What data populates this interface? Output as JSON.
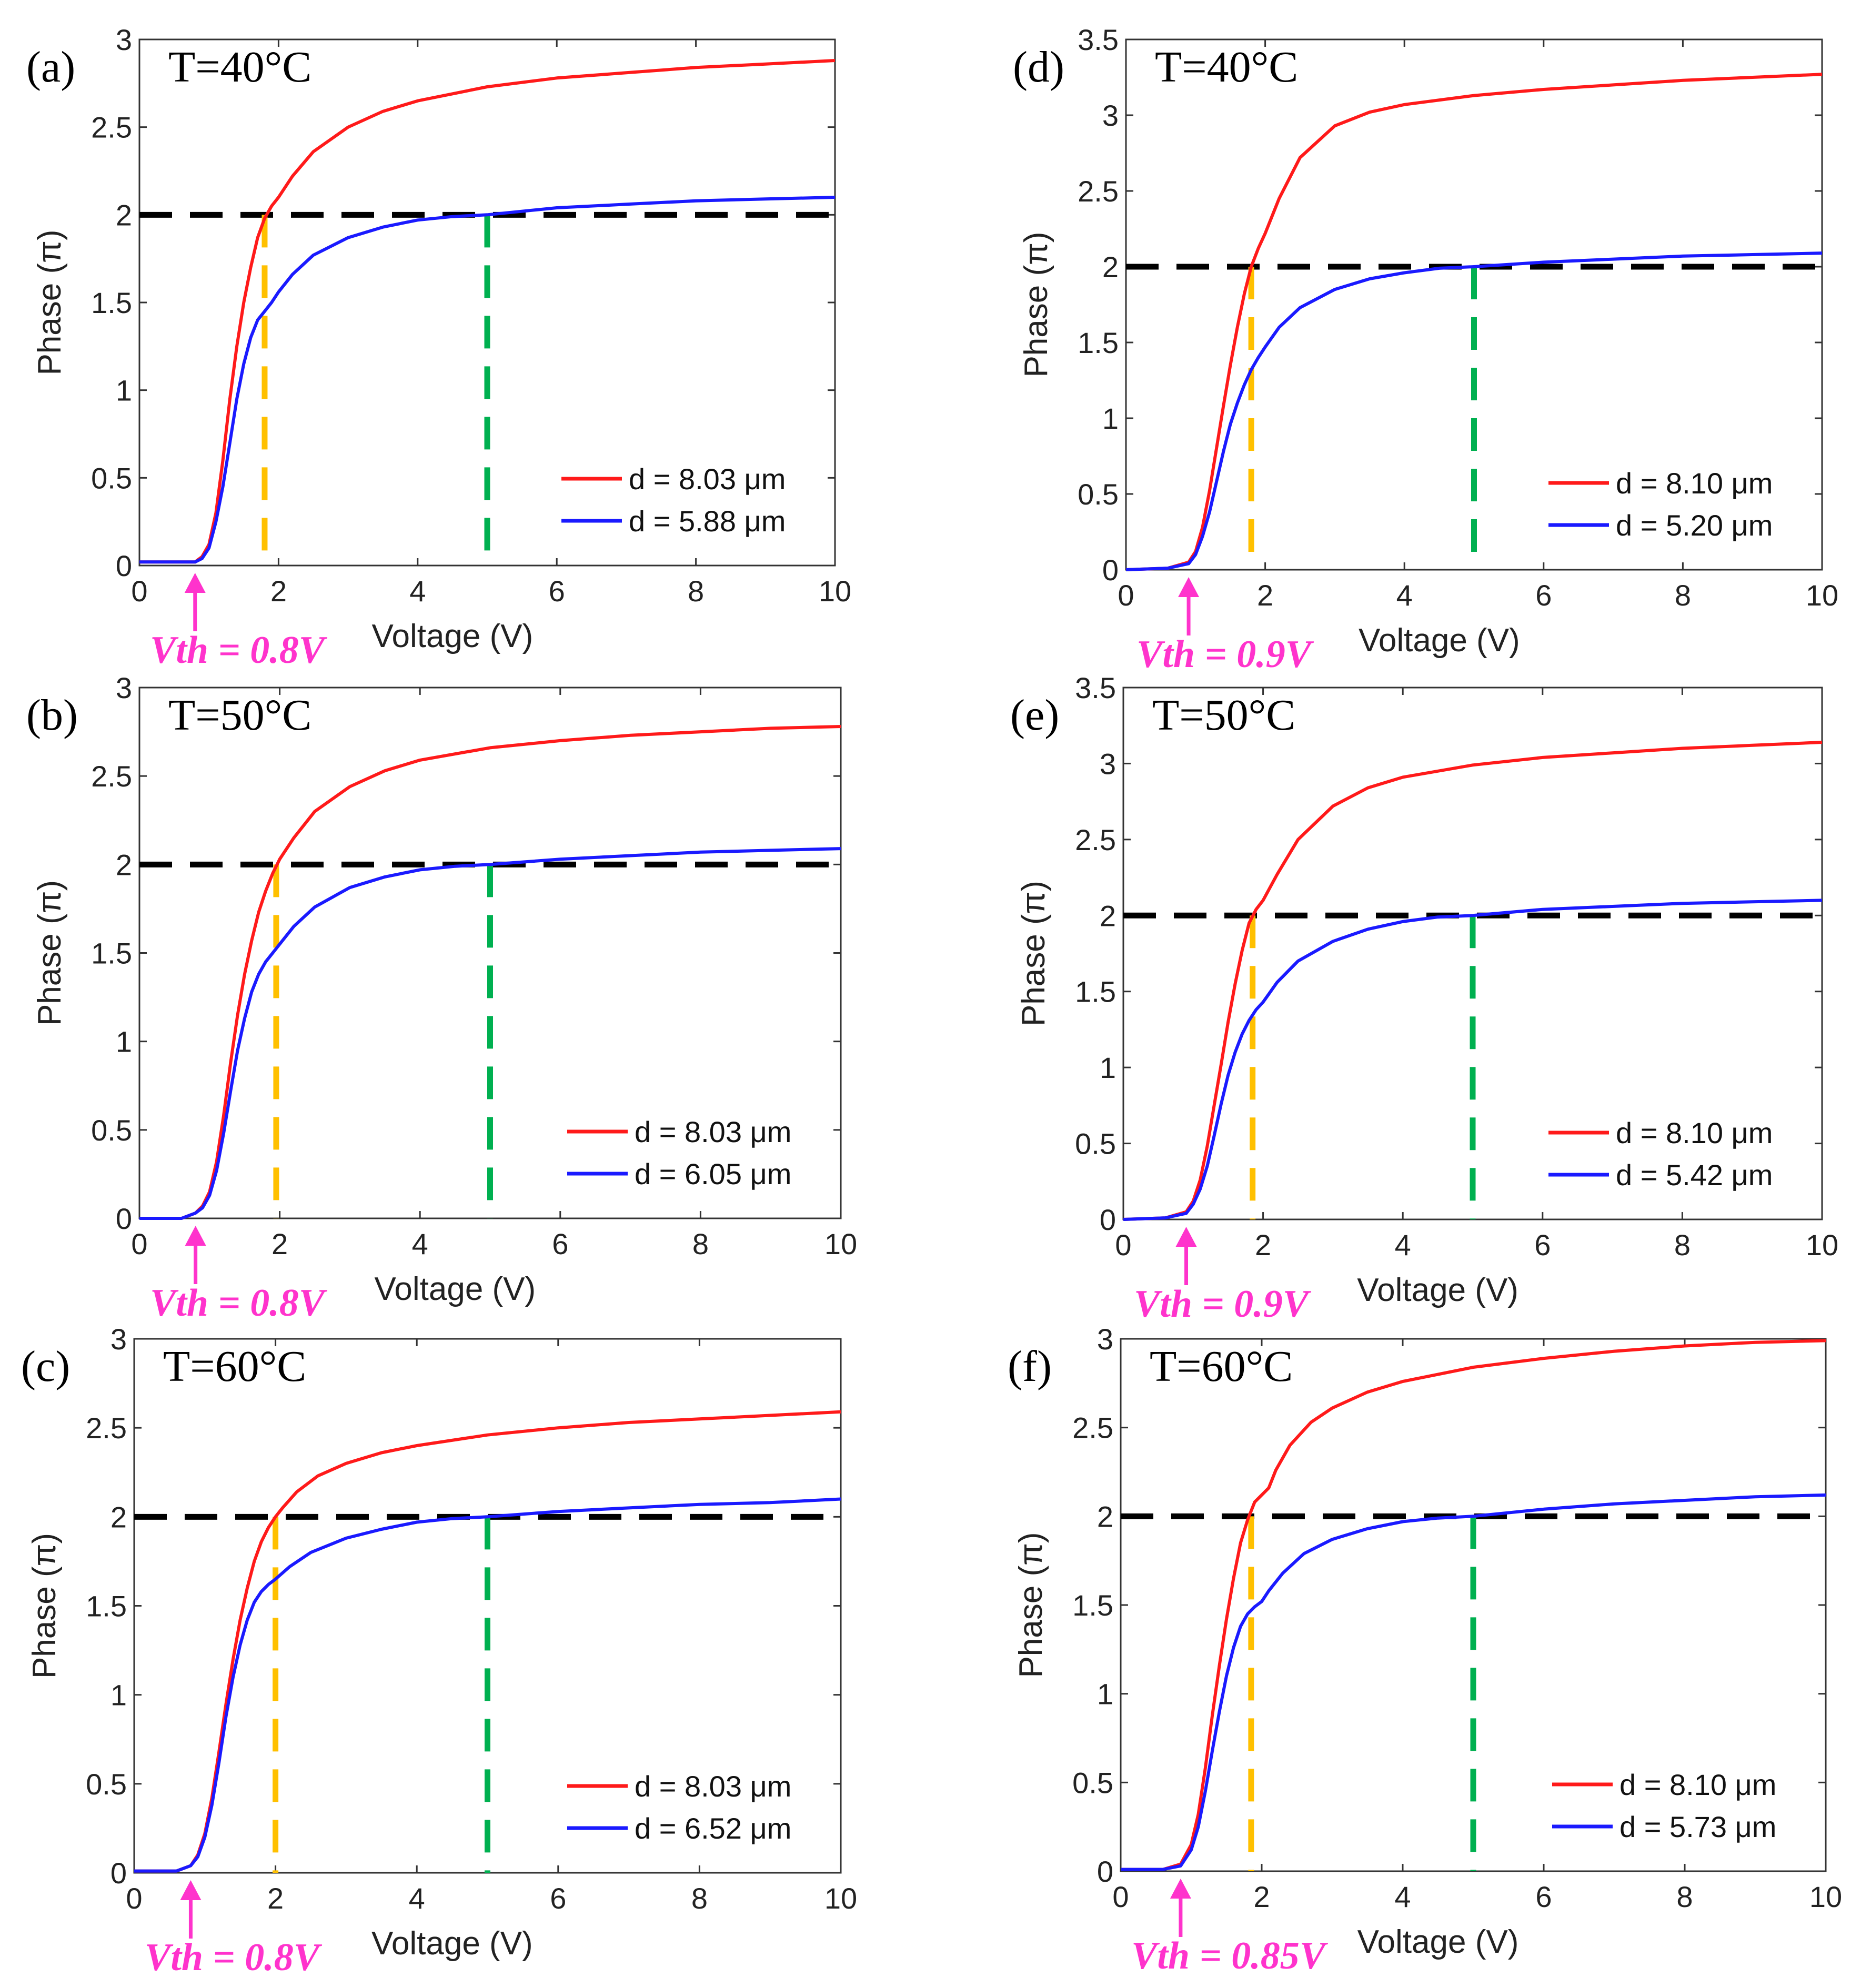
{
  "colors": {
    "red": "#ff1a1a",
    "blue": "#1a1aff",
    "black": "#000000",
    "orange": "#ffc000",
    "green": "#00b050",
    "magenta": "#ff33cc"
  },
  "chart_data": [
    {
      "type": "line",
      "panel": "(a)",
      "temperature": "T=40°C",
      "xlabel": "Voltage (V)",
      "ylabel": "Phase (π)",
      "xlim": [
        0,
        10
      ],
      "ylim": [
        0,
        3
      ],
      "xticks": [
        "0",
        "2",
        "4",
        "6",
        "8",
        "10"
      ],
      "yticks": [
        "0",
        "0.5",
        "1",
        "1.5",
        "2",
        "2.5",
        "3"
      ],
      "vth_label": "Vth = 0.8V",
      "vth": 0.8,
      "reference": {
        "phase": 2,
        "orange_v": 1.8,
        "green_v": 5.0
      },
      "series": [
        {
          "name": "d = 8.03 μm",
          "color": "red",
          "x": [
            0,
            0.8,
            0.9,
            1.0,
            1.1,
            1.2,
            1.3,
            1.4,
            1.5,
            1.6,
            1.7,
            1.8,
            1.9,
            2.0,
            2.2,
            2.5,
            3.0,
            3.5,
            4.0,
            5.0,
            6.0,
            7.0,
            8.0,
            9.0,
            10.0
          ],
          "y": [
            0.02,
            0.02,
            0.05,
            0.12,
            0.3,
            0.6,
            0.95,
            1.25,
            1.5,
            1.7,
            1.87,
            1.98,
            2.05,
            2.1,
            2.22,
            2.36,
            2.5,
            2.59,
            2.65,
            2.73,
            2.78,
            2.81,
            2.84,
            2.86,
            2.88
          ]
        },
        {
          "name": "d = 5.88 μm",
          "color": "blue",
          "x": [
            0,
            0.8,
            0.9,
            1.0,
            1.1,
            1.2,
            1.3,
            1.4,
            1.5,
            1.6,
            1.7,
            1.8,
            1.9,
            2.0,
            2.2,
            2.5,
            3.0,
            3.5,
            4.0,
            4.5,
            5.0,
            6.0,
            7.0,
            8.0,
            9.0,
            10.0
          ],
          "y": [
            0.02,
            0.02,
            0.04,
            0.1,
            0.25,
            0.45,
            0.7,
            0.95,
            1.15,
            1.3,
            1.4,
            1.45,
            1.5,
            1.56,
            1.66,
            1.77,
            1.87,
            1.93,
            1.97,
            1.99,
            2.0,
            2.04,
            2.06,
            2.08,
            2.09,
            2.1
          ]
        }
      ]
    },
    {
      "type": "line",
      "panel": "(b)",
      "temperature": "T=50°C",
      "xlabel": "Voltage (V)",
      "ylabel": "Phase (π)",
      "xlim": [
        0,
        10
      ],
      "ylim": [
        0,
        3
      ],
      "xticks": [
        "0",
        "2",
        "4",
        "6",
        "8",
        "10"
      ],
      "yticks": [
        "0",
        "0.5",
        "1",
        "1.5",
        "2",
        "2.5",
        "3"
      ],
      "vth_label": "Vth = 0.8V",
      "vth": 0.8,
      "reference": {
        "phase": 2,
        "orange_v": 1.95,
        "green_v": 5.0
      },
      "series": [
        {
          "name": "d = 8.03 μm",
          "color": "red",
          "x": [
            0,
            0.6,
            0.8,
            0.9,
            1.0,
            1.1,
            1.2,
            1.3,
            1.4,
            1.5,
            1.6,
            1.7,
            1.8,
            1.9,
            2.0,
            2.2,
            2.5,
            3.0,
            3.5,
            4.0,
            5.0,
            6.0,
            7.0,
            8.0,
            9.0,
            10.0
          ],
          "y": [
            0,
            0,
            0.03,
            0.07,
            0.15,
            0.32,
            0.58,
            0.88,
            1.15,
            1.38,
            1.57,
            1.73,
            1.85,
            1.95,
            2.03,
            2.15,
            2.3,
            2.44,
            2.53,
            2.59,
            2.66,
            2.7,
            2.73,
            2.75,
            2.77,
            2.78
          ]
        },
        {
          "name": "d = 6.05 μm",
          "color": "blue",
          "x": [
            0,
            0.6,
            0.8,
            0.9,
            1.0,
            1.1,
            1.2,
            1.3,
            1.4,
            1.5,
            1.6,
            1.7,
            1.8,
            1.9,
            2.0,
            2.2,
            2.5,
            3.0,
            3.5,
            4.0,
            4.5,
            5.0,
            6.0,
            7.0,
            8.0,
            9.0,
            10.0
          ],
          "y": [
            0,
            0,
            0.03,
            0.06,
            0.13,
            0.27,
            0.48,
            0.72,
            0.95,
            1.13,
            1.28,
            1.38,
            1.45,
            1.5,
            1.55,
            1.65,
            1.76,
            1.87,
            1.93,
            1.97,
            1.99,
            2.0,
            2.03,
            2.05,
            2.07,
            2.08,
            2.09
          ]
        }
      ]
    },
    {
      "type": "line",
      "panel": "(c)",
      "temperature": "T=60°C",
      "xlabel": "Voltage (V)",
      "ylabel": "Phase (π)",
      "xlim": [
        0,
        10
      ],
      "ylim": [
        0,
        3
      ],
      "xticks": [
        "0",
        "2",
        "4",
        "6",
        "8",
        "10"
      ],
      "yticks": [
        "0",
        "0.5",
        "1",
        "1.5",
        "2",
        "2.5",
        "3"
      ],
      "vth_label": "Vth = 0.8V",
      "vth": 0.8,
      "reference": {
        "phase": 2,
        "orange_v": 2.0,
        "green_v": 5.0
      },
      "series": [
        {
          "name": "d = 8.03 μm",
          "color": "red",
          "x": [
            0,
            0.6,
            0.8,
            0.9,
            1.0,
            1.1,
            1.2,
            1.3,
            1.4,
            1.5,
            1.6,
            1.7,
            1.8,
            1.9,
            2.0,
            2.1,
            2.3,
            2.6,
            3.0,
            3.5,
            4.0,
            5.0,
            6.0,
            7.0,
            8.0,
            9.0,
            10.0
          ],
          "y": [
            0.01,
            0.01,
            0.04,
            0.1,
            0.22,
            0.42,
            0.68,
            0.95,
            1.2,
            1.42,
            1.6,
            1.75,
            1.86,
            1.94,
            2.0,
            2.05,
            2.14,
            2.23,
            2.3,
            2.36,
            2.4,
            2.46,
            2.5,
            2.53,
            2.55,
            2.57,
            2.59
          ]
        },
        {
          "name": "d = 6.52 μm",
          "color": "blue",
          "x": [
            0,
            0.6,
            0.8,
            0.9,
            1.0,
            1.1,
            1.2,
            1.3,
            1.4,
            1.5,
            1.6,
            1.7,
            1.8,
            1.9,
            2.0,
            2.2,
            2.5,
            3.0,
            3.5,
            4.0,
            4.5,
            5.0,
            6.0,
            7.0,
            8.0,
            9.0,
            10.0
          ],
          "y": [
            0.01,
            0.01,
            0.04,
            0.09,
            0.2,
            0.38,
            0.62,
            0.88,
            1.1,
            1.28,
            1.42,
            1.52,
            1.58,
            1.62,
            1.65,
            1.72,
            1.8,
            1.88,
            1.93,
            1.97,
            1.99,
            2.0,
            2.03,
            2.05,
            2.07,
            2.08,
            2.1
          ]
        }
      ]
    },
    {
      "type": "line",
      "panel": "(d)",
      "temperature": "T=40°C",
      "xlabel": "Voltage (V)",
      "ylabel": "Phase (π)",
      "xlim": [
        0,
        10
      ],
      "ylim": [
        0,
        3.5
      ],
      "xticks": [
        "0",
        "2",
        "4",
        "6",
        "8",
        "10"
      ],
      "yticks": [
        "0",
        "0.5",
        "1",
        "1.5",
        "2",
        "2.5",
        "3",
        "3.5"
      ],
      "vth_label": "Vth = 0.9V",
      "vth": 0.9,
      "reference": {
        "phase": 2,
        "orange_v": 1.8,
        "green_v": 5.0
      },
      "series": [
        {
          "name": "d = 8.10 μm",
          "color": "red",
          "x": [
            0,
            0.6,
            0.9,
            1.0,
            1.1,
            1.2,
            1.3,
            1.4,
            1.5,
            1.6,
            1.7,
            1.8,
            1.9,
            2.0,
            2.2,
            2.5,
            3.0,
            3.5,
            4.0,
            5.0,
            6.0,
            7.0,
            8.0,
            9.0,
            10.0
          ],
          "y": [
            0,
            0.01,
            0.05,
            0.12,
            0.28,
            0.52,
            0.8,
            1.08,
            1.35,
            1.6,
            1.82,
            2.0,
            2.12,
            2.22,
            2.45,
            2.72,
            2.93,
            3.02,
            3.07,
            3.13,
            3.17,
            3.2,
            3.23,
            3.25,
            3.27
          ]
        },
        {
          "name": "d = 5.20 μm",
          "color": "blue",
          "x": [
            0,
            0.6,
            0.9,
            1.0,
            1.1,
            1.2,
            1.3,
            1.4,
            1.5,
            1.6,
            1.7,
            1.8,
            1.9,
            2.0,
            2.2,
            2.5,
            3.0,
            3.5,
            4.0,
            4.5,
            5.0,
            6.0,
            7.0,
            8.0,
            9.0,
            10.0
          ],
          "y": [
            0,
            0.01,
            0.04,
            0.1,
            0.22,
            0.38,
            0.58,
            0.78,
            0.96,
            1.1,
            1.22,
            1.32,
            1.4,
            1.47,
            1.6,
            1.73,
            1.85,
            1.92,
            1.96,
            1.99,
            2.0,
            2.03,
            2.05,
            2.07,
            2.08,
            2.09
          ]
        }
      ]
    },
    {
      "type": "line",
      "panel": "(e)",
      "temperature": "T=50°C",
      "xlabel": "Voltage (V)",
      "ylabel": "Phase (π)",
      "xlim": [
        0,
        10
      ],
      "ylim": [
        0,
        3.5
      ],
      "xticks": [
        "0",
        "2",
        "4",
        "6",
        "8",
        "10"
      ],
      "yticks": [
        "0",
        "0.5",
        "1",
        "1.5",
        "2",
        "2.5",
        "3",
        "3.5"
      ],
      "vth_label": "Vth = 0.9V",
      "vth": 0.9,
      "reference": {
        "phase": 2,
        "orange_v": 1.85,
        "green_v": 5.0
      },
      "series": [
        {
          "name": "d = 8.10 μm",
          "color": "red",
          "x": [
            0,
            0.6,
            0.9,
            1.0,
            1.1,
            1.2,
            1.3,
            1.4,
            1.5,
            1.6,
            1.7,
            1.8,
            1.9,
            2.0,
            2.2,
            2.5,
            3.0,
            3.5,
            4.0,
            5.0,
            6.0,
            7.0,
            8.0,
            9.0,
            10.0
          ],
          "y": [
            0,
            0.01,
            0.05,
            0.12,
            0.26,
            0.48,
            0.75,
            1.02,
            1.3,
            1.55,
            1.77,
            1.95,
            2.04,
            2.1,
            2.27,
            2.5,
            2.72,
            2.84,
            2.91,
            2.99,
            3.04,
            3.07,
            3.1,
            3.12,
            3.14
          ]
        },
        {
          "name": "d = 5.42 μm",
          "color": "blue",
          "x": [
            0,
            0.6,
            0.9,
            1.0,
            1.1,
            1.2,
            1.3,
            1.4,
            1.5,
            1.6,
            1.7,
            1.8,
            1.9,
            2.0,
            2.2,
            2.5,
            3.0,
            3.5,
            4.0,
            4.5,
            5.0,
            6.0,
            7.0,
            8.0,
            9.0,
            10.0
          ],
          "y": [
            0,
            0.01,
            0.04,
            0.1,
            0.2,
            0.35,
            0.55,
            0.76,
            0.95,
            1.1,
            1.22,
            1.31,
            1.38,
            1.43,
            1.56,
            1.7,
            1.83,
            1.91,
            1.96,
            1.99,
            2.0,
            2.04,
            2.06,
            2.08,
            2.09,
            2.1
          ]
        }
      ]
    },
    {
      "type": "line",
      "panel": "(f)",
      "temperature": "T=60°C",
      "xlabel": "Voltage (V)",
      "ylabel": "Phase (π)",
      "xlim": [
        0,
        10
      ],
      "ylim": [
        0,
        3
      ],
      "xticks": [
        "0",
        "2",
        "4",
        "6",
        "8",
        "10"
      ],
      "yticks": [
        "0",
        "0.5",
        "1",
        "1.5",
        "2",
        "2.5",
        "3"
      ],
      "vth_label": "Vth = 0.85V",
      "vth": 0.85,
      "reference": {
        "phase": 2,
        "orange_v": 1.85,
        "green_v": 5.0
      },
      "series": [
        {
          "name": "d = 8.10 μm",
          "color": "red",
          "x": [
            0,
            0.6,
            0.85,
            1.0,
            1.1,
            1.2,
            1.3,
            1.4,
            1.5,
            1.6,
            1.7,
            1.8,
            1.9,
            2.0,
            2.1,
            2.2,
            2.4,
            2.7,
            3.0,
            3.5,
            4.0,
            5.0,
            6.0,
            7.0,
            8.0,
            9.0,
            10.0
          ],
          "y": [
            0.01,
            0.01,
            0.04,
            0.15,
            0.32,
            0.58,
            0.88,
            1.16,
            1.42,
            1.65,
            1.85,
            1.98,
            2.08,
            2.12,
            2.16,
            2.26,
            2.4,
            2.53,
            2.61,
            2.7,
            2.76,
            2.84,
            2.89,
            2.93,
            2.96,
            2.98,
            2.99
          ]
        },
        {
          "name": "d = 5.73 μm",
          "color": "blue",
          "x": [
            0,
            0.6,
            0.85,
            1.0,
            1.1,
            1.2,
            1.3,
            1.4,
            1.5,
            1.6,
            1.7,
            1.8,
            1.9,
            2.0,
            2.1,
            2.3,
            2.6,
            3.0,
            3.5,
            4.0,
            4.5,
            5.0,
            6.0,
            7.0,
            8.0,
            9.0,
            10.0
          ],
          "y": [
            0.01,
            0.01,
            0.03,
            0.12,
            0.25,
            0.45,
            0.68,
            0.9,
            1.1,
            1.26,
            1.38,
            1.45,
            1.49,
            1.52,
            1.58,
            1.68,
            1.79,
            1.87,
            1.93,
            1.97,
            1.99,
            2.0,
            2.04,
            2.07,
            2.09,
            2.11,
            2.12
          ]
        }
      ]
    }
  ]
}
